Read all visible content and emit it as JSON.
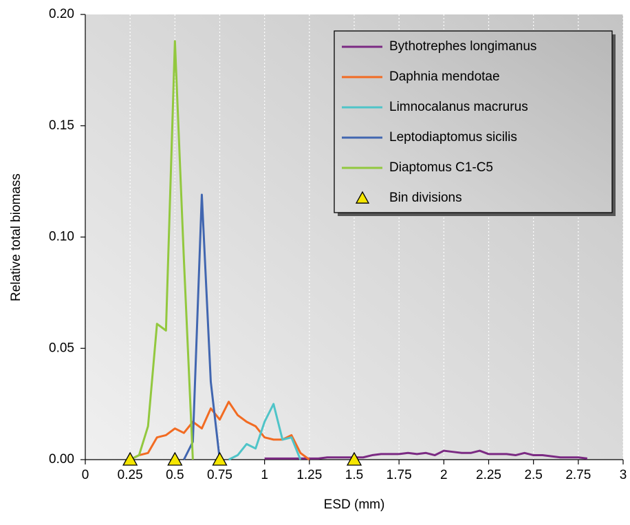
{
  "chart_data": {
    "type": "line",
    "xlabel": "ESD (mm)",
    "ylabel": "Relative total biomass",
    "xlim": [
      0,
      3
    ],
    "ylim": [
      0,
      0.2
    ],
    "xticks": [
      0,
      0.25,
      0.5,
      0.75,
      1,
      1.25,
      1.5,
      1.75,
      2,
      2.25,
      2.5,
      2.75,
      3
    ],
    "yticks": [
      {
        "value": 0,
        "label": "0.00"
      },
      {
        "value": 0.05,
        "label": "0.05"
      },
      {
        "value": 0.1,
        "label": "0.10"
      },
      {
        "value": 0.15,
        "label": "0.15"
      },
      {
        "value": 0.2,
        "label": "0.20"
      }
    ],
    "grid": "x",
    "legend": "upper right",
    "series": [
      {
        "name": "Bythotrephes longimanus",
        "color": "#7b2a83",
        "x": [
          1.0,
          1.05,
          1.1,
          1.15,
          1.2,
          1.25,
          1.3,
          1.35,
          1.4,
          1.45,
          1.5,
          1.55,
          1.6,
          1.65,
          1.7,
          1.75,
          1.8,
          1.85,
          1.9,
          1.95,
          2.0,
          2.05,
          2.1,
          2.15,
          2.2,
          2.25,
          2.3,
          2.35,
          2.4,
          2.45,
          2.5,
          2.55,
          2.6,
          2.65,
          2.7,
          2.75,
          2.8
        ],
        "values": [
          0.0005,
          0.0005,
          0.0005,
          0.0005,
          0.0005,
          0.0005,
          0.0005,
          0.001,
          0.001,
          0.001,
          0.001,
          0.001,
          0.002,
          0.0025,
          0.0025,
          0.0025,
          0.003,
          0.0025,
          0.003,
          0.002,
          0.004,
          0.0035,
          0.003,
          0.003,
          0.004,
          0.0025,
          0.0025,
          0.0025,
          0.002,
          0.003,
          0.002,
          0.002,
          0.0015,
          0.001,
          0.001,
          0.001,
          0.0005
        ]
      },
      {
        "name": "Daphnia mendotae",
        "color": "#f26b22",
        "x": [
          0.25,
          0.3,
          0.35,
          0.4,
          0.45,
          0.5,
          0.55,
          0.6,
          0.65,
          0.7,
          0.75,
          0.8,
          0.85,
          0.9,
          0.95,
          1.0,
          1.05,
          1.1,
          1.15,
          1.2,
          1.25
        ],
        "values": [
          0,
          0.002,
          0.003,
          0.01,
          0.011,
          0.014,
          0.012,
          0.017,
          0.014,
          0.023,
          0.018,
          0.026,
          0.02,
          0.017,
          0.015,
          0.01,
          0.009,
          0.009,
          0.011,
          0.003,
          0
        ]
      },
      {
        "name": "Limnocalanus macrurus",
        "color": "#4fc4c8",
        "x": [
          0.8,
          0.85,
          0.9,
          0.95,
          1.0,
          1.05,
          1.1,
          1.15,
          1.2
        ],
        "values": [
          0,
          0.002,
          0.007,
          0.005,
          0.017,
          0.025,
          0.009,
          0.01,
          0
        ]
      },
      {
        "name": "Leptodiaptomus sicilis",
        "color": "#4166b0",
        "x": [
          0.55,
          0.6,
          0.65,
          0.7,
          0.75
        ],
        "values": [
          0,
          0.008,
          0.119,
          0.035,
          0
        ]
      },
      {
        "name": "Diaptomus C1-C5",
        "color": "#92c83e",
        "x": [
          0.25,
          0.3,
          0.35,
          0.4,
          0.45,
          0.5,
          0.55,
          0.6
        ],
        "values": [
          0,
          0.002,
          0.015,
          0.061,
          0.058,
          0.188,
          0.09,
          0
        ]
      },
      {
        "name": "Bin divisions",
        "color": "#f5e600",
        "marker": "triangle",
        "x": [
          0.25,
          0.5,
          0.75,
          1.5
        ],
        "values": [
          0,
          0,
          0,
          0
        ]
      }
    ]
  }
}
